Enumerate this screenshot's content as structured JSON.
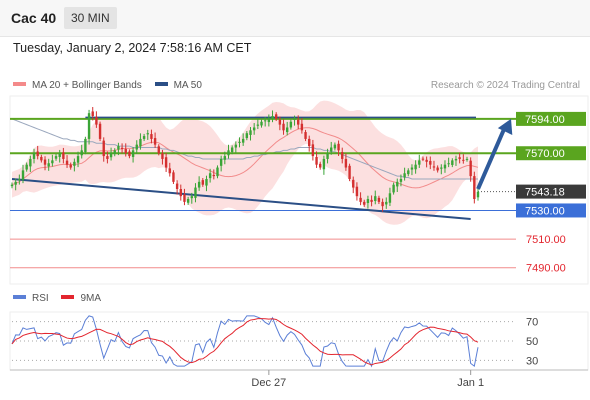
{
  "header": {
    "title": "Cac 40",
    "timeframe": "30 MIN"
  },
  "date_line": "Tuesday, January 2, 2024 7:58:16 AM CET",
  "price_legend": [
    {
      "label": "MA 20 + Bollinger Bands",
      "color": "#f48a8a"
    },
    {
      "label": "MA 50",
      "color": "#2b4f86"
    }
  ],
  "credit": "Research © 2024 Trading Central",
  "rsi_legend": [
    {
      "label": "RSI",
      "color": "#5b7fd6"
    },
    {
      "label": "9MA",
      "color": "#e3262f"
    }
  ],
  "colors": {
    "resistance": "#5aa51f",
    "support": "#3b6fd8",
    "target": "#f28b8b",
    "arrow": "#2e5a9a",
    "band": "#fbdada"
  },
  "chart_data": {
    "type": "line",
    "price_axis": {
      "ymin": 7480,
      "ymax": 7610
    },
    "levels": [
      {
        "label": "7594.00",
        "value": 7594.0,
        "kind": "resistance"
      },
      {
        "label": "7570.00",
        "value": 7570.0,
        "kind": "resistance"
      },
      {
        "label": "7543.18",
        "value": 7543.18,
        "kind": "last"
      },
      {
        "label": "7530.00",
        "value": 7530.0,
        "kind": "support"
      },
      {
        "label": "7510.00",
        "value": 7510.0,
        "kind": "target"
      },
      {
        "label": "7490.00",
        "value": 7490.0,
        "kind": "target"
      }
    ],
    "x_ticks": [
      {
        "label": "Dec 27",
        "index": 70
      },
      {
        "label": "Jan 1",
        "index": 125
      }
    ],
    "bar_count": 128,
    "close": [
      7548,
      7550,
      7552,
      7558,
      7562,
      7566,
      7570,
      7568,
      7565,
      7562,
      7563,
      7565,
      7568,
      7570,
      7566,
      7562,
      7560,
      7564,
      7568,
      7572,
      7580,
      7598,
      7596,
      7590,
      7580,
      7568,
      7566,
      7570,
      7572,
      7575,
      7573,
      7570,
      7568,
      7572,
      7576,
      7580,
      7582,
      7584,
      7580,
      7576,
      7570,
      7566,
      7560,
      7556,
      7550,
      7545,
      7540,
      7536,
      7538,
      7540,
      7546,
      7550,
      7548,
      7552,
      7556,
      7554,
      7560,
      7566,
      7568,
      7572,
      7574,
      7576,
      7578,
      7580,
      7584,
      7586,
      7588,
      7590,
      7592,
      7593,
      7594,
      7596,
      7594,
      7590,
      7586,
      7588,
      7592,
      7594,
      7590,
      7586,
      7580,
      7575,
      7568,
      7562,
      7560,
      7566,
      7570,
      7574,
      7576,
      7572,
      7566,
      7560,
      7552,
      7546,
      7540,
      7536,
      7534,
      7538,
      7536,
      7540,
      7536,
      7533,
      7536,
      7542,
      7548,
      7550,
      7552,
      7556,
      7558,
      7560,
      7562,
      7565,
      7566,
      7564,
      7562,
      7560,
      7558,
      7560,
      7562,
      7563,
      7565,
      7566,
      7566,
      7565,
      7566,
      7554,
      7538,
      7543
    ],
    "ma50": [
      7594,
      7593,
      7592,
      7591,
      7590,
      7589,
      7588,
      7587,
      7586,
      7585,
      7584,
      7583,
      7582,
      7581,
      7580,
      7580,
      7579,
      7579,
      7578,
      7578,
      7578,
      7578,
      7578,
      7577,
      7577,
      7577,
      7576,
      7576,
      7576,
      7575,
      7575,
      7575,
      7575,
      7574,
      7574,
      7574,
      7574,
      7574,
      7574,
      7574,
      7574,
      7573,
      7573,
      7572,
      7572,
      7571,
      7570,
      7569,
      7568,
      7568,
      7567,
      7567,
      7566,
      7566,
      7566,
      7566,
      7566,
      7566,
      7566,
      7566,
      7566,
      7566,
      7566,
      7566,
      7567,
      7567,
      7568,
      7568,
      7569,
      7569,
      7570,
      7570,
      7571,
      7571,
      7572,
      7572,
      7573,
      7573,
      7574,
      7574,
      7574,
      7574,
      7574,
      7573,
      7573,
      7572,
      7572,
      7571,
      7571,
      7570,
      7569,
      7568,
      7567,
      7566,
      7565,
      7564,
      7563,
      7562,
      7561,
      7560,
      7559,
      7558,
      7557,
      7556,
      7555,
      7554,
      7554,
      7553,
      7553,
      7552,
      7552,
      7552,
      7552,
      7552,
      7552,
      7552,
      7552,
      7552,
      7552,
      7552,
      7552,
      7552,
      7552,
      7552,
      7552,
      7552,
      7552,
      7552
    ],
    "trendline": {
      "from": {
        "index": 0,
        "value": 7552
      },
      "to": {
        "index": 125,
        "value": 7524
      }
    },
    "arrow": {
      "from": {
        "index": 127,
        "value": 7545
      },
      "to": {
        "index": 136,
        "value": 7594
      }
    },
    "rsi": {
      "levels": [
        70,
        50,
        30
      ],
      "ymin": 20,
      "ymax": 80
    }
  }
}
